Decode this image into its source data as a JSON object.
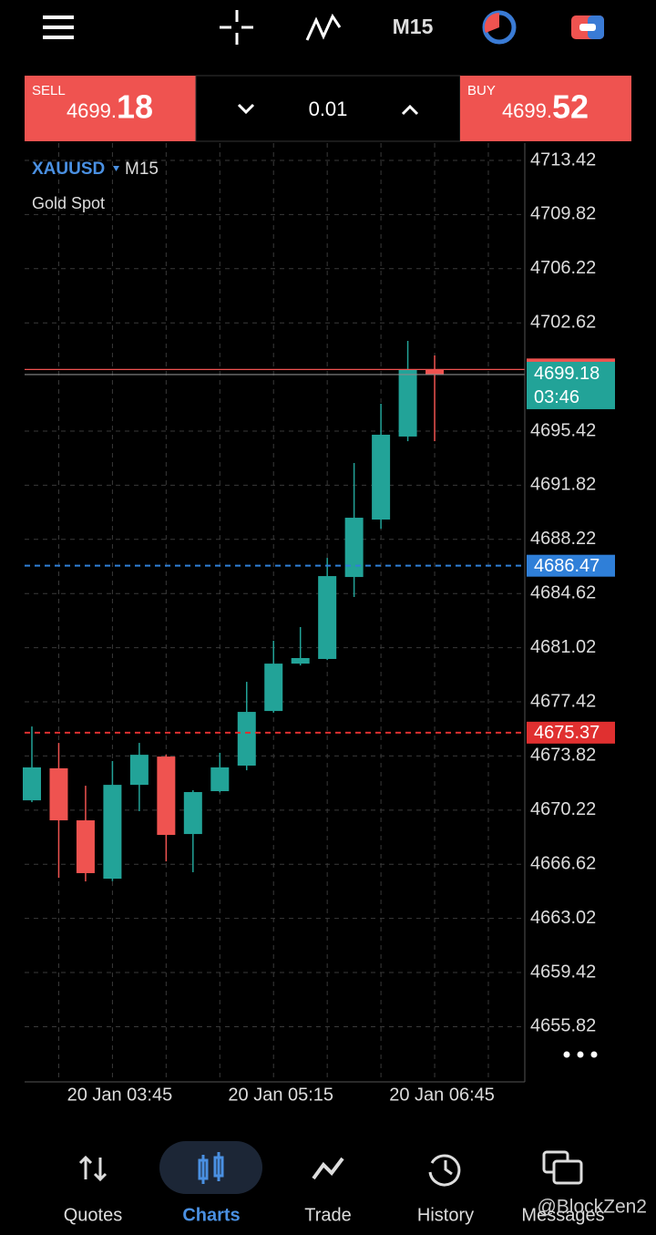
{
  "header": {
    "timeframe": "M15"
  },
  "trade_bar": {
    "sell": {
      "label": "SELL",
      "price_main": "4699.",
      "price_big": "18"
    },
    "lot": "0.01",
    "buy": {
      "label": "BUY",
      "price_main": "4699.",
      "price_big": "52"
    }
  },
  "legend": {
    "symbol": "XAUUSD",
    "timeframe": "M15",
    "description": "Gold Spot"
  },
  "chart_data": {
    "type": "candlestick",
    "categories": [
      null,
      null,
      null,
      "20 Jan 03:45",
      null,
      null,
      null,
      null,
      null,
      "20 Jan 05:15",
      null,
      null,
      null,
      null,
      null,
      "20 Jan 06:45"
    ],
    "open": [
      4670.87,
      4673.0,
      4669.54,
      4665.66,
      4671.9,
      4673.78,
      4668.63,
      4671.48,
      4673.18,
      4676.81,
      4679.96,
      4680.27,
      4685.72,
      4689.54,
      4695.06,
      4699.54
    ],
    "high": [
      4675.78,
      4674.69,
      4671.84,
      4673.48,
      4674.69,
      4673.9,
      4671.54,
      4674.03,
      4678.75,
      4681.48,
      4682.39,
      4686.99,
      4693.3,
      4697.24,
      4701.42,
      4700.45
    ],
    "low": [
      4670.75,
      4665.72,
      4665.48,
      4665.5,
      4670.15,
      4666.81,
      4666.09,
      4671.4,
      4672.87,
      4676.7,
      4679.84,
      4680.2,
      4684.39,
      4688.93,
      4694.75,
      4694.75
    ],
    "close": [
      4673.06,
      4669.54,
      4666.03,
      4671.9,
      4673.9,
      4668.57,
      4671.42,
      4673.06,
      4676.75,
      4679.96,
      4680.33,
      4685.78,
      4689.66,
      4695.18,
      4699.54,
      4699.18
    ],
    "up_color": "#22a398",
    "down_color": "#ef5350",
    "ylim": [
      4652.15,
      4714.57
    ],
    "yticks": [
      4713.42,
      4709.82,
      4706.22,
      4702.62,
      4695.42,
      4691.82,
      4688.22,
      4684.62,
      4681.02,
      4677.42,
      4673.82,
      4670.22,
      4666.62,
      4663.02,
      4659.42,
      4655.82
    ],
    "grid": true,
    "price_lines": [
      {
        "value": 4699.52,
        "color": "#ef5350"
      },
      {
        "value": 4699.18,
        "color": "#8a8a8a",
        "label_color": "#22a398",
        "countdown": "03:46"
      },
      {
        "value": 4686.47,
        "color": "#2f7fd8",
        "dashed": true
      },
      {
        "value": 4675.37,
        "color": "#e03030",
        "dashed": true
      }
    ]
  },
  "nav": {
    "items": [
      "Quotes",
      "Charts",
      "Trade",
      "History",
      "Messages"
    ],
    "active": 1
  },
  "watermark": "@BlockZen2"
}
